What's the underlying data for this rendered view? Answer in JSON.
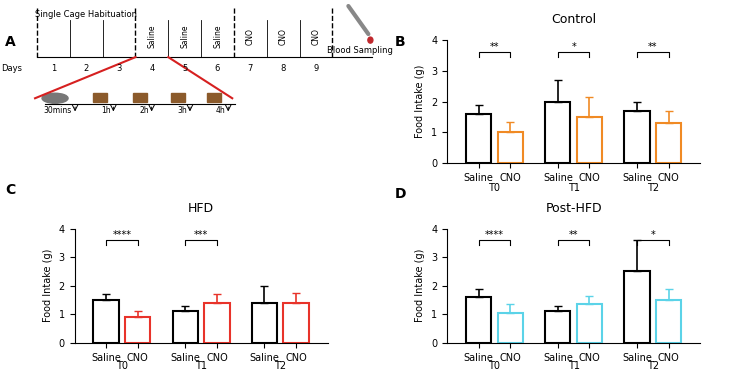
{
  "panel_a": {
    "panel_label": "A",
    "habituation": "Single Cage Habituation",
    "days_label": "Days",
    "days": [
      1,
      2,
      3,
      4,
      5,
      6,
      7,
      8,
      9
    ],
    "treatments": [
      null,
      null,
      null,
      "Saline",
      "Saline",
      "Saline",
      "CNO",
      "CNO",
      "CNO"
    ],
    "blood": "Blood Sampling",
    "timepoints": [
      "30mins",
      "1h",
      "2h",
      "3h",
      "4h"
    ]
  },
  "chart_data": [
    {
      "type": "bar",
      "panel_label": "B",
      "title": "Control",
      "y_label": "Food Intake (g)",
      "categories": [
        "T0",
        "T1",
        "T2"
      ],
      "series": [
        {
          "name": "Saline",
          "color": "#000000",
          "values": [
            1.6,
            2.0,
            1.7
          ],
          "errors": [
            0.3,
            0.7,
            0.3
          ]
        },
        {
          "name": "CNO",
          "color": "#f08a24",
          "values": [
            1.0,
            1.5,
            1.3
          ],
          "errors": [
            0.35,
            0.65,
            0.4
          ]
        }
      ],
      "significance": [
        "**",
        "*",
        "**"
      ],
      "ylim": [
        0,
        4
      ],
      "yticks": [
        0,
        1,
        2,
        3,
        4
      ]
    },
    {
      "type": "bar",
      "panel_label": "C",
      "title": "HFD",
      "y_label": "Food Intake (g)",
      "categories": [
        "T0",
        "T1",
        "T2"
      ],
      "series": [
        {
          "name": "Saline",
          "color": "#000000",
          "values": [
            1.5,
            1.1,
            1.4
          ],
          "errors": [
            0.2,
            0.2,
            0.6
          ]
        },
        {
          "name": "CNO",
          "color": "#e8332a",
          "values": [
            0.9,
            1.4,
            1.4
          ],
          "errors": [
            0.2,
            0.3,
            0.35
          ]
        }
      ],
      "significance": [
        "****",
        "***",
        null
      ],
      "ylim": [
        0,
        4
      ],
      "yticks": [
        0,
        1,
        2,
        3,
        4
      ]
    },
    {
      "type": "bar",
      "panel_label": "D",
      "title": "Post-HFD",
      "y_label": "Food Intake (g)",
      "categories": [
        "T0",
        "T1",
        "T2"
      ],
      "series": [
        {
          "name": "Saline",
          "color": "#000000",
          "values": [
            1.6,
            1.1,
            2.5
          ],
          "errors": [
            0.3,
            0.2,
            1.1
          ]
        },
        {
          "name": "CNO",
          "color": "#5bd3e8",
          "values": [
            1.05,
            1.35,
            1.5
          ],
          "errors": [
            0.3,
            0.3,
            0.4
          ]
        }
      ],
      "significance": [
        "****",
        "**",
        "*"
      ],
      "ylim": [
        0,
        4
      ],
      "yticks": [
        0,
        1,
        2,
        3,
        4
      ]
    }
  ]
}
